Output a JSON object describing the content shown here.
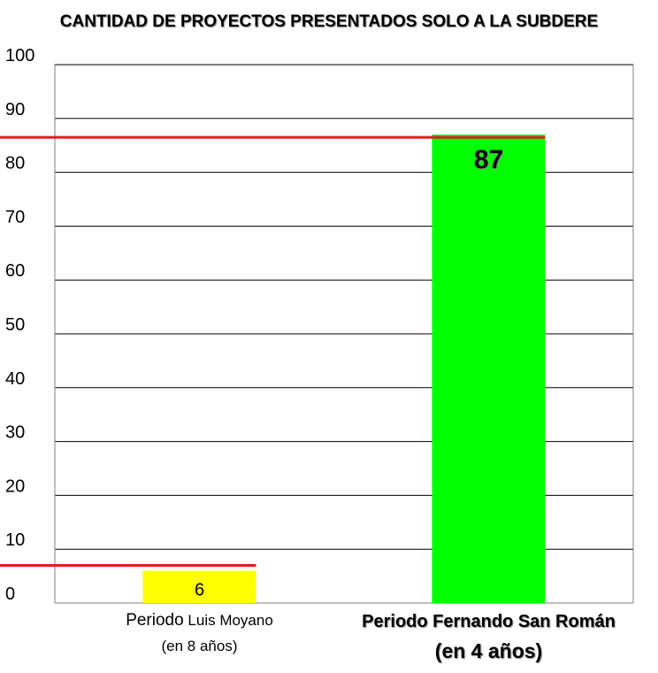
{
  "chart_data": {
    "type": "bar",
    "title": "CANTIDAD DE PROYECTOS PRESENTADOS SOLO A LA SUBDERE",
    "xlabel": "",
    "ylabel": "",
    "ylim": [
      0,
      100
    ],
    "y_ticks": [
      "0",
      "10",
      "20",
      "30",
      "40",
      "50",
      "60",
      "70",
      "80",
      "90",
      "100"
    ],
    "grid": true,
    "legend": "none",
    "categories": [
      {
        "line1_main": "Periodo",
        "line1_rest": " Luis Moyano",
        "line2": "(en 8 años)",
        "emphasis": false
      },
      {
        "line1_main": "Periodo Fernando San Román",
        "line1_rest": "",
        "line2": "(en 4 años)",
        "emphasis": true
      }
    ],
    "values": [
      6,
      87
    ],
    "value_labels": [
      "6",
      "87"
    ],
    "bar_colors": [
      "#ffff00",
      "#00ff00"
    ],
    "reference_lines": [
      {
        "value": 7,
        "color": "#e41a1c",
        "spans_to_category": 0
      },
      {
        "value": 86.5,
        "color": "#e41a1c",
        "spans_to_category": 1
      }
    ],
    "grid_color": "#000000",
    "axis_color": "#7f7f7f"
  }
}
